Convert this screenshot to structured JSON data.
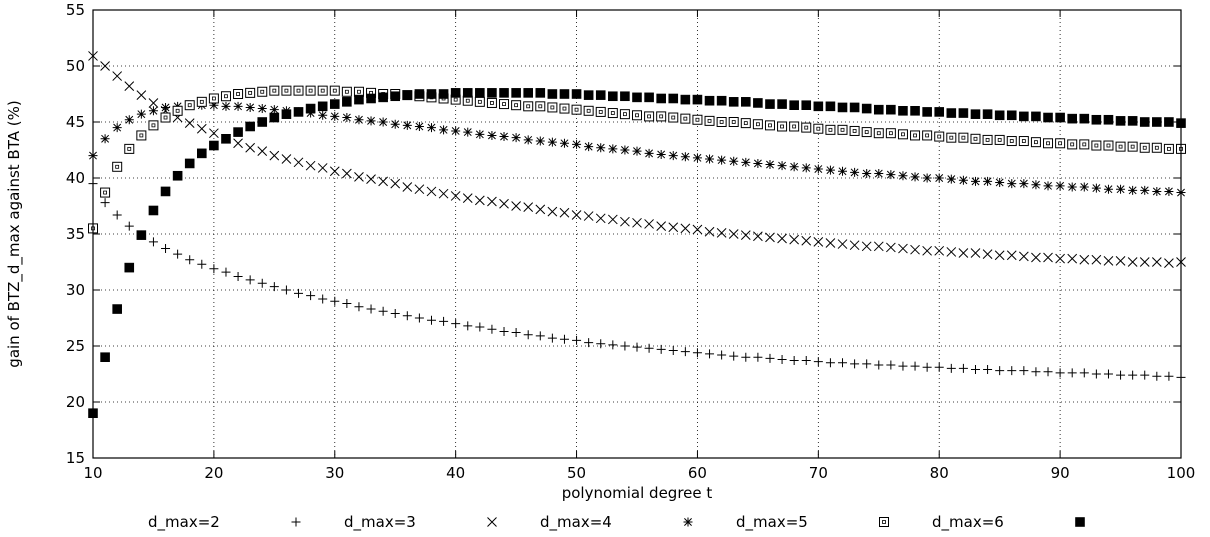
{
  "chart_data": {
    "type": "scatter",
    "title": "",
    "xlabel": "polynomial degree t",
    "ylabel": "gain of BTZ_d_max against BTA (%)",
    "xlim": [
      10,
      100
    ],
    "ylim": [
      15,
      55
    ],
    "xticks": [
      10,
      20,
      30,
      40,
      50,
      60,
      70,
      80,
      90,
      100
    ],
    "yticks": [
      15,
      20,
      25,
      30,
      35,
      40,
      45,
      50,
      55
    ],
    "grid": true,
    "legend_position": "bottom",
    "x": [
      10,
      11,
      12,
      13,
      14,
      15,
      16,
      17,
      18,
      19,
      20,
      21,
      22,
      23,
      24,
      25,
      26,
      27,
      28,
      29,
      30,
      31,
      32,
      33,
      34,
      35,
      36,
      37,
      38,
      39,
      40,
      41,
      42,
      43,
      44,
      45,
      46,
      47,
      48,
      49,
      50,
      51,
      52,
      53,
      54,
      55,
      56,
      57,
      58,
      59,
      60,
      61,
      62,
      63,
      64,
      65,
      66,
      67,
      68,
      69,
      70,
      71,
      72,
      73,
      74,
      75,
      76,
      77,
      78,
      79,
      80,
      81,
      82,
      83,
      84,
      85,
      86,
      87,
      88,
      89,
      90,
      91,
      92,
      93,
      94,
      95,
      96,
      97,
      98,
      99,
      100
    ],
    "series": [
      {
        "name": "d_max=2",
        "marker": "plus",
        "values": [
          39.5,
          37.8,
          36.7,
          35.7,
          34.9,
          34.3,
          33.7,
          33.2,
          32.7,
          32.3,
          31.9,
          31.6,
          31.2,
          30.9,
          30.6,
          30.3,
          30.0,
          29.7,
          29.5,
          29.2,
          29.0,
          28.8,
          28.5,
          28.3,
          28.1,
          27.9,
          27.7,
          27.5,
          27.3,
          27.2,
          27.0,
          26.8,
          26.7,
          26.5,
          26.3,
          26.2,
          26.0,
          25.9,
          25.7,
          25.6,
          25.5,
          25.3,
          25.2,
          25.1,
          25.0,
          24.9,
          24.8,
          24.7,
          24.6,
          24.5,
          24.4,
          24.3,
          24.2,
          24.1,
          24.0,
          24.0,
          23.9,
          23.8,
          23.7,
          23.7,
          23.6,
          23.5,
          23.5,
          23.4,
          23.4,
          23.3,
          23.3,
          23.2,
          23.2,
          23.1,
          23.1,
          23.0,
          23.0,
          22.9,
          22.9,
          22.8,
          22.8,
          22.8,
          22.7,
          22.7,
          22.6,
          22.6,
          22.6,
          22.5,
          22.5,
          22.4,
          22.4,
          22.4,
          22.3,
          22.3,
          22.2
        ]
      },
      {
        "name": "d_max=3",
        "marker": "cross",
        "values": [
          50.9,
          50.0,
          49.1,
          48.2,
          47.4,
          46.7,
          46.0,
          45.4,
          44.9,
          44.4,
          44.0,
          43.5,
          43.1,
          42.7,
          42.4,
          42.0,
          41.7,
          41.4,
          41.1,
          40.9,
          40.6,
          40.4,
          40.1,
          39.9,
          39.7,
          39.5,
          39.2,
          39.0,
          38.8,
          38.6,
          38.4,
          38.2,
          38.0,
          37.9,
          37.7,
          37.5,
          37.4,
          37.2,
          37.0,
          36.9,
          36.7,
          36.6,
          36.4,
          36.3,
          36.1,
          36.0,
          35.9,
          35.7,
          35.6,
          35.5,
          35.4,
          35.2,
          35.1,
          35.0,
          34.9,
          34.8,
          34.7,
          34.6,
          34.5,
          34.4,
          34.3,
          34.2,
          34.1,
          34.0,
          33.9,
          33.9,
          33.8,
          33.7,
          33.6,
          33.5,
          33.5,
          33.4,
          33.3,
          33.3,
          33.2,
          33.1,
          33.1,
          33.0,
          32.9,
          32.9,
          32.8,
          32.8,
          32.7,
          32.7,
          32.6,
          32.6,
          32.5,
          32.5,
          32.5,
          32.4,
          32.5
        ]
      },
      {
        "name": "d_max=4",
        "marker": "star",
        "values": [
          42.0,
          43.5,
          44.5,
          45.2,
          45.7,
          46.0,
          46.3,
          46.4,
          46.5,
          46.5,
          46.5,
          46.4,
          46.4,
          46.3,
          46.2,
          46.1,
          46.0,
          45.9,
          45.8,
          45.6,
          45.5,
          45.4,
          45.2,
          45.1,
          45.0,
          44.8,
          44.7,
          44.6,
          44.5,
          44.3,
          44.2,
          44.1,
          43.9,
          43.8,
          43.7,
          43.6,
          43.4,
          43.3,
          43.2,
          43.1,
          43.0,
          42.8,
          42.7,
          42.6,
          42.5,
          42.4,
          42.2,
          42.1,
          42.0,
          41.9,
          41.8,
          41.7,
          41.6,
          41.5,
          41.4,
          41.3,
          41.2,
          41.1,
          41.0,
          40.9,
          40.8,
          40.7,
          40.6,
          40.5,
          40.4,
          40.4,
          40.3,
          40.2,
          40.1,
          40.0,
          40.0,
          39.9,
          39.8,
          39.7,
          39.7,
          39.6,
          39.5,
          39.5,
          39.4,
          39.3,
          39.3,
          39.2,
          39.2,
          39.1,
          39.0,
          39.0,
          38.9,
          38.9,
          38.8,
          38.8,
          38.7
        ]
      },
      {
        "name": "d_max=5",
        "marker": "box",
        "values": [
          35.5,
          38.7,
          41.0,
          42.6,
          43.8,
          44.7,
          45.4,
          46.0,
          46.5,
          46.8,
          47.1,
          47.3,
          47.5,
          47.6,
          47.7,
          47.8,
          47.8,
          47.8,
          47.8,
          47.8,
          47.8,
          47.7,
          47.7,
          47.6,
          47.5,
          47.5,
          47.4,
          47.3,
          47.2,
          47.1,
          47.0,
          46.9,
          46.8,
          46.7,
          46.6,
          46.5,
          46.4,
          46.4,
          46.3,
          46.2,
          46.1,
          46.0,
          45.9,
          45.8,
          45.7,
          45.6,
          45.5,
          45.5,
          45.4,
          45.3,
          45.2,
          45.1,
          45.0,
          45.0,
          44.9,
          44.8,
          44.7,
          44.6,
          44.6,
          44.5,
          44.4,
          44.3,
          44.3,
          44.2,
          44.1,
          44.0,
          44.0,
          43.9,
          43.8,
          43.8,
          43.7,
          43.6,
          43.6,
          43.5,
          43.4,
          43.4,
          43.3,
          43.3,
          43.2,
          43.1,
          43.1,
          43.0,
          43.0,
          42.9,
          42.9,
          42.8,
          42.8,
          42.7,
          42.7,
          42.6,
          42.6
        ]
      },
      {
        "name": "d_max=6",
        "marker": "filled-box",
        "values": [
          19.0,
          24.0,
          28.3,
          32.0,
          34.9,
          37.1,
          38.8,
          40.2,
          41.3,
          42.2,
          42.9,
          43.5,
          44.1,
          44.6,
          45.0,
          45.4,
          45.7,
          45.9,
          46.2,
          46.4,
          46.6,
          46.8,
          47.0,
          47.1,
          47.2,
          47.3,
          47.4,
          47.5,
          47.5,
          47.5,
          47.6,
          47.6,
          47.6,
          47.6,
          47.6,
          47.6,
          47.6,
          47.6,
          47.5,
          47.5,
          47.5,
          47.4,
          47.4,
          47.3,
          47.3,
          47.2,
          47.2,
          47.1,
          47.1,
          47.0,
          47.0,
          46.9,
          46.9,
          46.8,
          46.8,
          46.7,
          46.6,
          46.6,
          46.5,
          46.5,
          46.4,
          46.4,
          46.3,
          46.3,
          46.2,
          46.1,
          46.1,
          46.0,
          46.0,
          45.9,
          45.9,
          45.8,
          45.8,
          45.7,
          45.7,
          45.6,
          45.6,
          45.5,
          45.5,
          45.4,
          45.4,
          45.3,
          45.3,
          45.2,
          45.2,
          45.1,
          45.1,
          45.0,
          45.0,
          45.0,
          44.9
        ]
      }
    ]
  }
}
